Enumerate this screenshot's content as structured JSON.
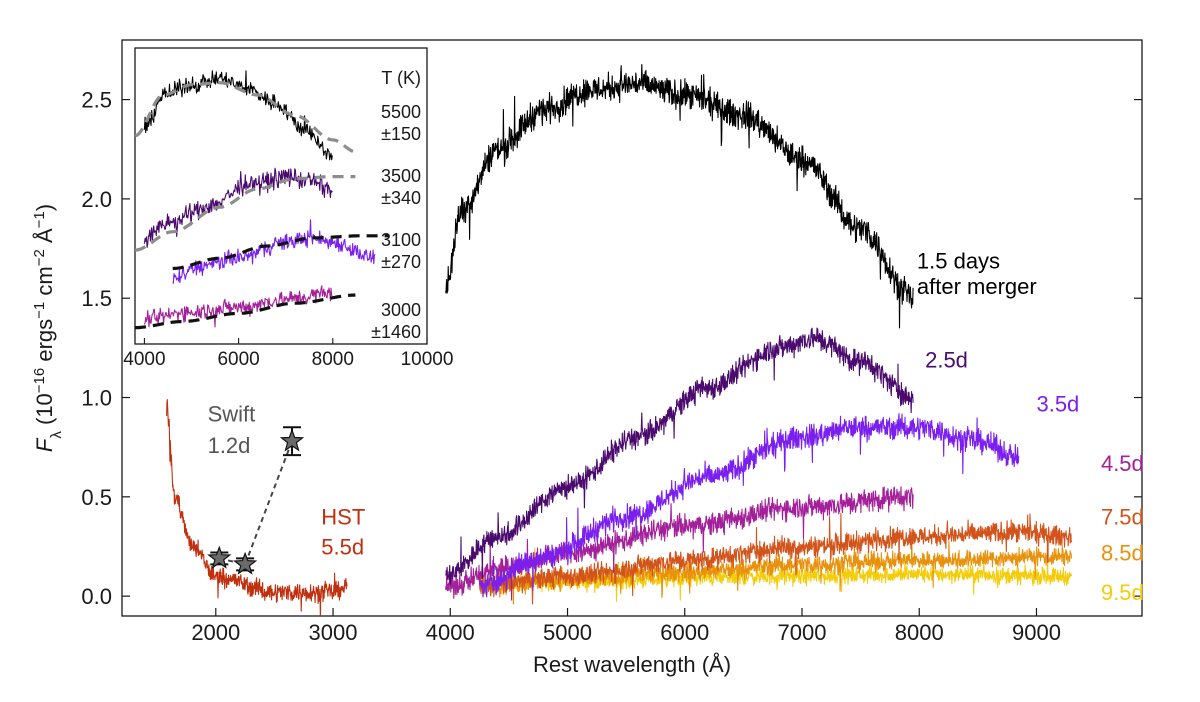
{
  "chart_data": [
    {
      "type": "line",
      "xlabel": "Rest wavelength (Å)",
      "ylabel": {
        "F": "F",
        "lambda": "λ",
        "a": " (10",
        "e1": "−16",
        "b": " ergs",
        "e2": "−1",
        "c": " cm",
        "e3": "−2",
        "d": " Å",
        "e4": "−1",
        "f": ")"
      },
      "xlim": [
        1200,
        9900
      ],
      "ylim": [
        -0.1,
        2.8
      ],
      "x_ticks": [
        "2000",
        "3000",
        "4000",
        "5000",
        "6000",
        "7000",
        "8000",
        "9000"
      ],
      "y_ticks": [
        "0.0",
        "0.5",
        "1.0",
        "1.5",
        "2.0",
        "2.5"
      ],
      "series": [
        {
          "name": "1.5 days after merger",
          "color": "#000000",
          "x_range": [
            3960,
            7950
          ],
          "anchors": [
            [
              3960,
              1.55
            ],
            [
              4100,
              1.95
            ],
            [
              4400,
              2.25
            ],
            [
              4800,
              2.45
            ],
            [
              5200,
              2.55
            ],
            [
              5600,
              2.58
            ],
            [
              6000,
              2.52
            ],
            [
              6500,
              2.42
            ],
            [
              7000,
              2.2
            ],
            [
              7500,
              1.85
            ],
            [
              7950,
              1.5
            ]
          ],
          "noise": 0.06
        },
        {
          "name": "2.5d",
          "color": "#4a0a6e",
          "x_range": [
            3960,
            7950
          ],
          "anchors": [
            [
              3960,
              0.1
            ],
            [
              4400,
              0.3
            ],
            [
              5000,
              0.55
            ],
            [
              5600,
              0.8
            ],
            [
              6200,
              1.05
            ],
            [
              6800,
              1.25
            ],
            [
              7100,
              1.3
            ],
            [
              7500,
              1.18
            ],
            [
              7950,
              1.0
            ]
          ],
          "noise": 0.05
        },
        {
          "name": "3.5d",
          "color": "#7a1ff0",
          "x_range": [
            4250,
            8850
          ],
          "anchors": [
            [
              4250,
              0.05
            ],
            [
              4800,
              0.2
            ],
            [
              5500,
              0.4
            ],
            [
              6200,
              0.6
            ],
            [
              7000,
              0.8
            ],
            [
              7500,
              0.85
            ],
            [
              8000,
              0.85
            ],
            [
              8500,
              0.78
            ],
            [
              8850,
              0.7
            ]
          ],
          "noise": 0.05
        },
        {
          "name": "4.5d",
          "color": "#a4209a",
          "x_range": [
            3960,
            7950
          ],
          "anchors": [
            [
              3960,
              0.05
            ],
            [
              4500,
              0.15
            ],
            [
              5000,
              0.22
            ],
            [
              6000,
              0.35
            ],
            [
              7000,
              0.45
            ],
            [
              7950,
              0.5
            ]
          ],
          "noise": 0.05
        },
        {
          "name": "7.5d",
          "color": "#d2541a",
          "x_range": [
            4250,
            9300
          ],
          "anchors": [
            [
              4250,
              0.05
            ],
            [
              5000,
              0.1
            ],
            [
              6000,
              0.18
            ],
            [
              7000,
              0.25
            ],
            [
              8000,
              0.3
            ],
            [
              8800,
              0.32
            ],
            [
              9300,
              0.3
            ]
          ],
          "noise": 0.045
        },
        {
          "name": "8.5d",
          "color": "#e8920c",
          "x_range": [
            4250,
            9300
          ],
          "anchors": [
            [
              4250,
              0.05
            ],
            [
              5000,
              0.08
            ],
            [
              6000,
              0.12
            ],
            [
              7000,
              0.16
            ],
            [
              8000,
              0.18
            ],
            [
              9300,
              0.2
            ]
          ],
          "noise": 0.04
        },
        {
          "name": "9.5d",
          "color": "#f4cc0a",
          "x_range": [
            4250,
            9300
          ],
          "anchors": [
            [
              4250,
              0.08
            ],
            [
              5000,
              0.07
            ],
            [
              6000,
              0.09
            ],
            [
              7000,
              0.1
            ],
            [
              8000,
              0.11
            ],
            [
              9300,
              0.1
            ]
          ],
          "noise": 0.035
        },
        {
          "name": "HST 5.5d",
          "color": "#c0300f",
          "x_range": [
            1580,
            3120
          ],
          "anchors": [
            [
              1580,
              0.95
            ],
            [
              1650,
              0.5
            ],
            [
              1800,
              0.25
            ],
            [
              2000,
              0.1
            ],
            [
              2500,
              0.02
            ],
            [
              3000,
              0.02
            ],
            [
              3120,
              0.05
            ]
          ],
          "noise": 0.04
        }
      ],
      "swift_points": [
        {
          "x": 2030,
          "y": 0.19,
          "yerr": 0.03
        },
        {
          "x": 2250,
          "y": 0.16,
          "yerr": 0.03
        },
        {
          "x": 2650,
          "y": 0.78,
          "yerr": 0.07
        }
      ],
      "annotations": [
        {
          "text": "1.5 days",
          "x": 7980,
          "y": 1.65,
          "color": "#000000"
        },
        {
          "text": "after merger",
          "x": 7980,
          "y": 1.52,
          "color": "#000000"
        },
        {
          "text": "2.5d",
          "x": 8050,
          "y": 1.15,
          "color": "#4a0a6e"
        },
        {
          "text": "3.5d",
          "x": 9000,
          "y": 0.93,
          "color": "#7a1ff0"
        },
        {
          "text": "4.5d",
          "x": 9550,
          "y": 0.63,
          "color": "#a4209a"
        },
        {
          "text": "7.5d",
          "x": 9550,
          "y": 0.36,
          "color": "#d2541a"
        },
        {
          "text": "8.5d",
          "x": 9550,
          "y": 0.18,
          "color": "#e8920c"
        },
        {
          "text": "9.5d",
          "x": 9550,
          "y": -0.02,
          "color": "#f4cc0a"
        },
        {
          "text": "Swift",
          "x": 1930,
          "y": 0.88,
          "color": "#555555"
        },
        {
          "text": "1.2d",
          "x": 1930,
          "y": 0.72,
          "color": "#555555"
        },
        {
          "text": "HST",
          "x": 2900,
          "y": 0.36,
          "color": "#c0300f"
        },
        {
          "text": "5.5d",
          "x": 2900,
          "y": 0.21,
          "color": "#c0300f"
        }
      ]
    },
    {
      "type": "line",
      "xlim": [
        3800,
        10000
      ],
      "ylim": [
        1.3,
        2.75
      ],
      "x_ticks": [
        "4000",
        "6000",
        "8000",
        "10000"
      ],
      "series": [
        {
          "name": "5500",
          "color": "#000000",
          "x_range": [
            4000,
            8000
          ],
          "anchors": [
            [
              4000,
              2.35
            ],
            [
              4400,
              2.52
            ],
            [
              5000,
              2.57
            ],
            [
              5600,
              2.6
            ],
            [
              6200,
              2.55
            ],
            [
              6800,
              2.48
            ],
            [
              7400,
              2.35
            ],
            [
              8000,
              2.22
            ]
          ],
          "noise": 0.035
        },
        {
          "name": "3500",
          "color": "#4a0a6e",
          "x_range": [
            4000,
            8000
          ],
          "anchors": [
            [
              4000,
              1.82
            ],
            [
              4600,
              1.9
            ],
            [
              5400,
              1.98
            ],
            [
              6200,
              2.08
            ],
            [
              7000,
              2.12
            ],
            [
              7500,
              2.1
            ],
            [
              8000,
              2.05
            ]
          ],
          "noise": 0.04
        },
        {
          "name": "3100",
          "color": "#7a1ff0",
          "x_range": [
            4600,
            8900
          ],
          "anchors": [
            [
              4600,
              1.62
            ],
            [
              5200,
              1.68
            ],
            [
              6000,
              1.72
            ],
            [
              7000,
              1.8
            ],
            [
              7500,
              1.82
            ],
            [
              8000,
              1.8
            ],
            [
              8900,
              1.72
            ]
          ],
          "noise": 0.035
        },
        {
          "name": "3000",
          "color": "#a4209a",
          "x_range": [
            4000,
            8000
          ],
          "anchors": [
            [
              4000,
              1.42
            ],
            [
              5000,
              1.46
            ],
            [
              6000,
              1.48
            ],
            [
              7000,
              1.52
            ],
            [
              8000,
              1.55
            ]
          ],
          "noise": 0.035
        }
      ],
      "fits": [
        {
          "style": "gray",
          "anchors": [
            [
              3800,
              2.32
            ],
            [
              4400,
              2.52
            ],
            [
              5000,
              2.57
            ],
            [
              5600,
              2.58
            ],
            [
              6400,
              2.52
            ],
            [
              7200,
              2.42
            ],
            [
              8000,
              2.3
            ],
            [
              8500,
              2.24
            ]
          ]
        },
        {
          "style": "gray",
          "anchors": [
            [
              3800,
              1.76
            ],
            [
              4600,
              1.85
            ],
            [
              5600,
              1.97
            ],
            [
              6400,
              2.06
            ],
            [
              7200,
              2.11
            ],
            [
              8000,
              2.12
            ],
            [
              8500,
              2.12
            ]
          ]
        },
        {
          "style": "black",
          "anchors": [
            [
              4600,
              1.67
            ],
            [
              5600,
              1.72
            ],
            [
              6600,
              1.78
            ],
            [
              7600,
              1.82
            ],
            [
              8600,
              1.83
            ],
            [
              9200,
              1.83
            ]
          ]
        },
        {
          "style": "black",
          "anchors": [
            [
              3800,
              1.38
            ],
            [
              4800,
              1.41
            ],
            [
              6000,
              1.45
            ],
            [
              7200,
              1.5
            ],
            [
              8500,
              1.54
            ]
          ]
        }
      ],
      "labels": {
        "header": "T (K)",
        "temps": [
          {
            "t": "5500",
            "err": "±150"
          },
          {
            "t": "3500",
            "err": "±340"
          },
          {
            "t": "3100",
            "err": "±270"
          },
          {
            "t": "3000",
            "err": "±1460"
          }
        ]
      }
    }
  ]
}
